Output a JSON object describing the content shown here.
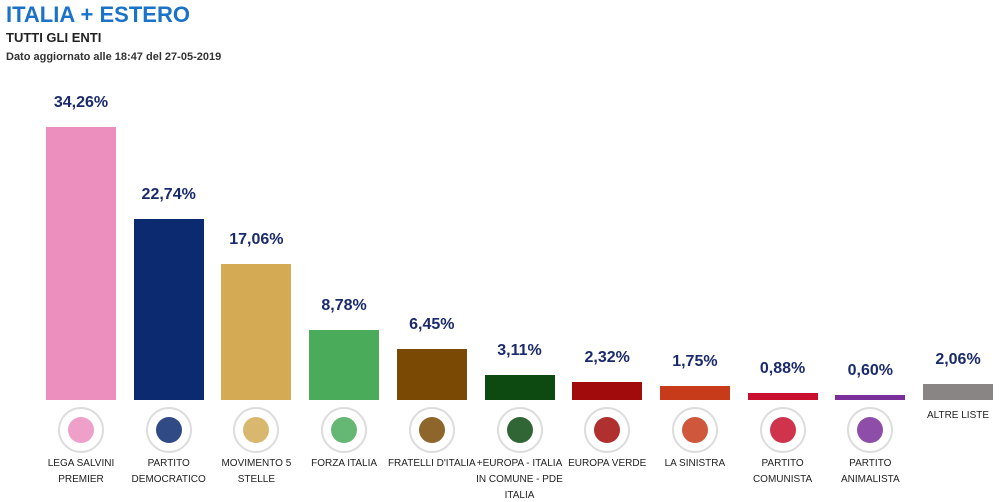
{
  "chart_data": {
    "type": "bar",
    "title": "ITALIA + ESTERO",
    "subtitle": "TUTTI GLI ENTI",
    "note": "Dato aggiornato alle 18:47 del 27-05-2019",
    "categories": [
      "LEGA SALVINI PREMIER",
      "PARTITO DEMOCRATICO",
      "MOVIMENTO 5 STELLE",
      "FORZA ITALIA",
      "FRATELLI D'ITALIA",
      "+EUROPA - ITALIA IN COMUNE - PDE ITALIA",
      "EUROPA VERDE",
      "LA SINISTRA",
      "PARTITO COMUNISTA",
      "PARTITO ANIMALISTA",
      "ALTRE LISTE"
    ],
    "values": [
      34.26,
      22.74,
      17.06,
      8.78,
      6.45,
      3.11,
      2.32,
      1.75,
      0.88,
      0.6,
      2.06
    ],
    "value_labels": [
      "34,26%",
      "22,74%",
      "17,06%",
      "8,78%",
      "6,45%",
      "3,11%",
      "2,32%",
      "1,75%",
      "0,88%",
      "0,60%",
      "2,06%"
    ],
    "colors": [
      "#ec8fbf",
      "#0b2a6f",
      "#d4aa55",
      "#4aab5a",
      "#7a4a05",
      "#0c4a12",
      "#a20b0b",
      "#c73a1a",
      "#c8102e",
      "#7a2e9a",
      "#8a8585"
    ]
  }
}
